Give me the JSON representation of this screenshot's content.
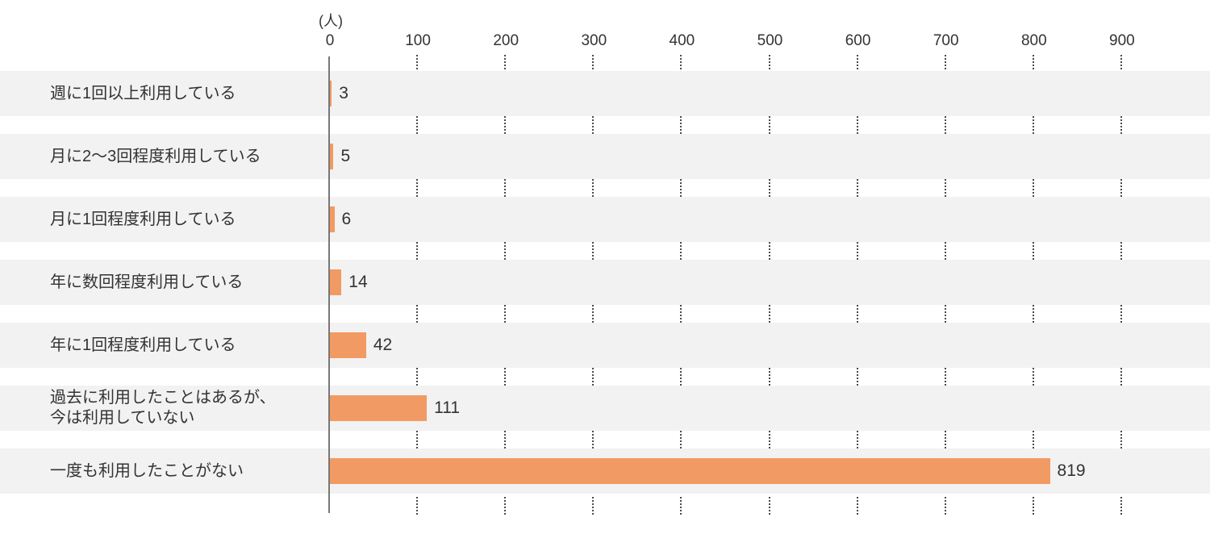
{
  "chart_data": {
    "type": "bar",
    "orientation": "horizontal",
    "title": "",
    "unit_label": "(人)",
    "categories": [
      "週に1回以上利用している",
      "月に2～3回程度利用している",
      "月に1回程度利用している",
      "年に数回程度利用している",
      "年に1回程度利用している",
      "過去に利用したことはあるが、\n今は利用していない",
      "一度も利用したことがない"
    ],
    "values": [
      3,
      5,
      6,
      14,
      42,
      111,
      819
    ],
    "value_labels": [
      "3",
      "5",
      "6",
      "14",
      "42",
      "111",
      "819"
    ],
    "x_ticks": [
      0,
      100,
      200,
      300,
      400,
      500,
      600,
      700,
      800,
      900
    ],
    "xlim": [
      0,
      1000
    ],
    "grid": "dotted-vertical-in-gaps",
    "legend": "none",
    "colors": {
      "bar": "#F29A63",
      "row_band": "#F2F2F2",
      "axis_line": "#777777",
      "grid_dots": "#4A4A4A",
      "text": "#333333",
      "background": "#FFFFFF"
    }
  }
}
